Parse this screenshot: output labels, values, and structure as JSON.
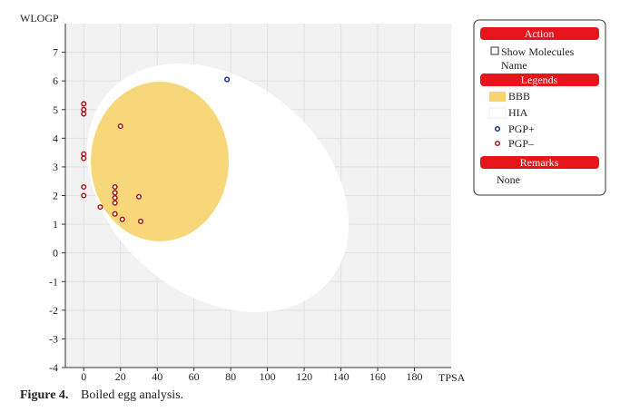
{
  "chart_data": {
    "type": "scatter",
    "x_label": "TPSA",
    "y_label": "WLOGP",
    "xlim": [
      -10,
      200
    ],
    "ylim": [
      -4,
      8
    ],
    "xticks": [
      0,
      20,
      40,
      60,
      80,
      100,
      120,
      140,
      160,
      180
    ],
    "yticks": [
      -4,
      -3,
      -2,
      -1,
      0,
      1,
      2,
      3,
      4,
      5,
      6,
      7
    ],
    "grid": true,
    "regions": [
      {
        "name": "BBB",
        "color": "#f7d36b"
      },
      {
        "name": "HIA",
        "color": "#ffffff"
      }
    ],
    "series": [
      {
        "name": "PGP+",
        "color": "#1a2a8c",
        "x": [
          78
        ],
        "y": [
          6.05
        ]
      },
      {
        "name": "PGP–",
        "color": "#a01818",
        "x": [
          0,
          0,
          0,
          0,
          0,
          0,
          0,
          9,
          17,
          17,
          17,
          17,
          17,
          20,
          21,
          30,
          31
        ],
        "y": [
          5.2,
          5.0,
          4.85,
          3.45,
          3.3,
          2.3,
          2.0,
          1.6,
          2.3,
          2.1,
          1.92,
          1.74,
          1.36,
          4.42,
          1.17,
          1.96,
          1.1
        ]
      }
    ]
  },
  "panel": {
    "action": "Action",
    "show_molecules": "Show Molecules",
    "show_molecules_2": "Name",
    "legends": "Legends",
    "remarks": "Remarks",
    "remarks_text": "None"
  },
  "caption": {
    "label": "Figure 4.",
    "text": "Boiled egg analysis."
  }
}
